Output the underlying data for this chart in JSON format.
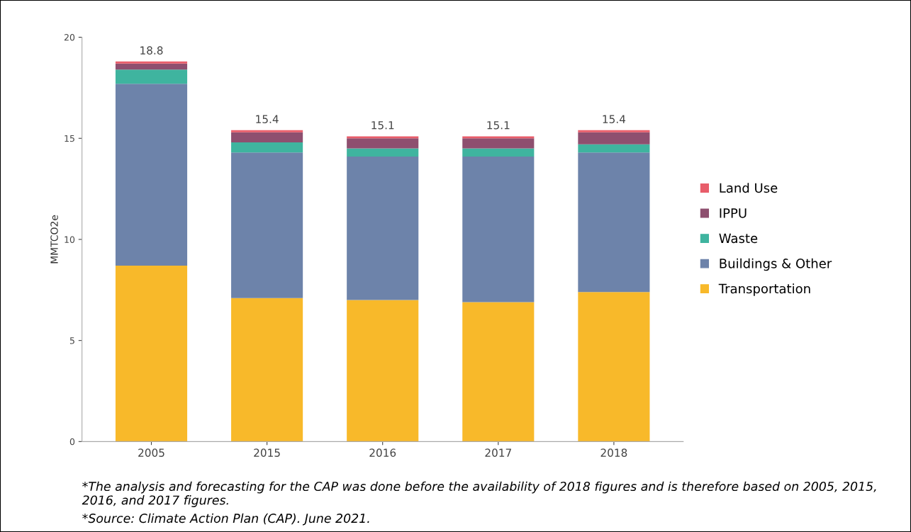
{
  "chart_data": {
    "type": "bar",
    "stacked": true,
    "ylabel": "MMTCO2e",
    "categories": [
      "2005",
      "2015",
      "2016",
      "2017",
      "2018"
    ],
    "series": [
      {
        "name": "Transportation",
        "color": "#f8b92a",
        "values": [
          8.7,
          7.1,
          7.0,
          6.9,
          7.4
        ]
      },
      {
        "name": "Buildings & Other",
        "color": "#6d83aa",
        "values": [
          9.0,
          7.2,
          7.1,
          7.2,
          6.9
        ]
      },
      {
        "name": "Waste",
        "color": "#3fb49f",
        "values": [
          0.7,
          0.5,
          0.4,
          0.4,
          0.4
        ]
      },
      {
        "name": "IPPU",
        "color": "#8e4f6f",
        "values": [
          0.3,
          0.5,
          0.5,
          0.5,
          0.6
        ]
      },
      {
        "name": "Land Use",
        "color": "#e85d6a",
        "values": [
          0.1,
          0.1,
          0.1,
          0.1,
          0.1
        ]
      }
    ],
    "totals": [
      "18.8",
      "15.4",
      "15.1",
      "15.1",
      "15.4"
    ],
    "ylim": [
      0,
      20
    ],
    "yticks": [
      0,
      5,
      10,
      15,
      20
    ],
    "grid": false,
    "legend": "right",
    "annotations": [
      "*The analysis and forecasting for the CAP was done before the availability of 2018 figures and is therefore based on 2005, 2015, 2016, and 2017 figures.",
      "*Source: Climate Action Plan (CAP). June 2021."
    ]
  }
}
